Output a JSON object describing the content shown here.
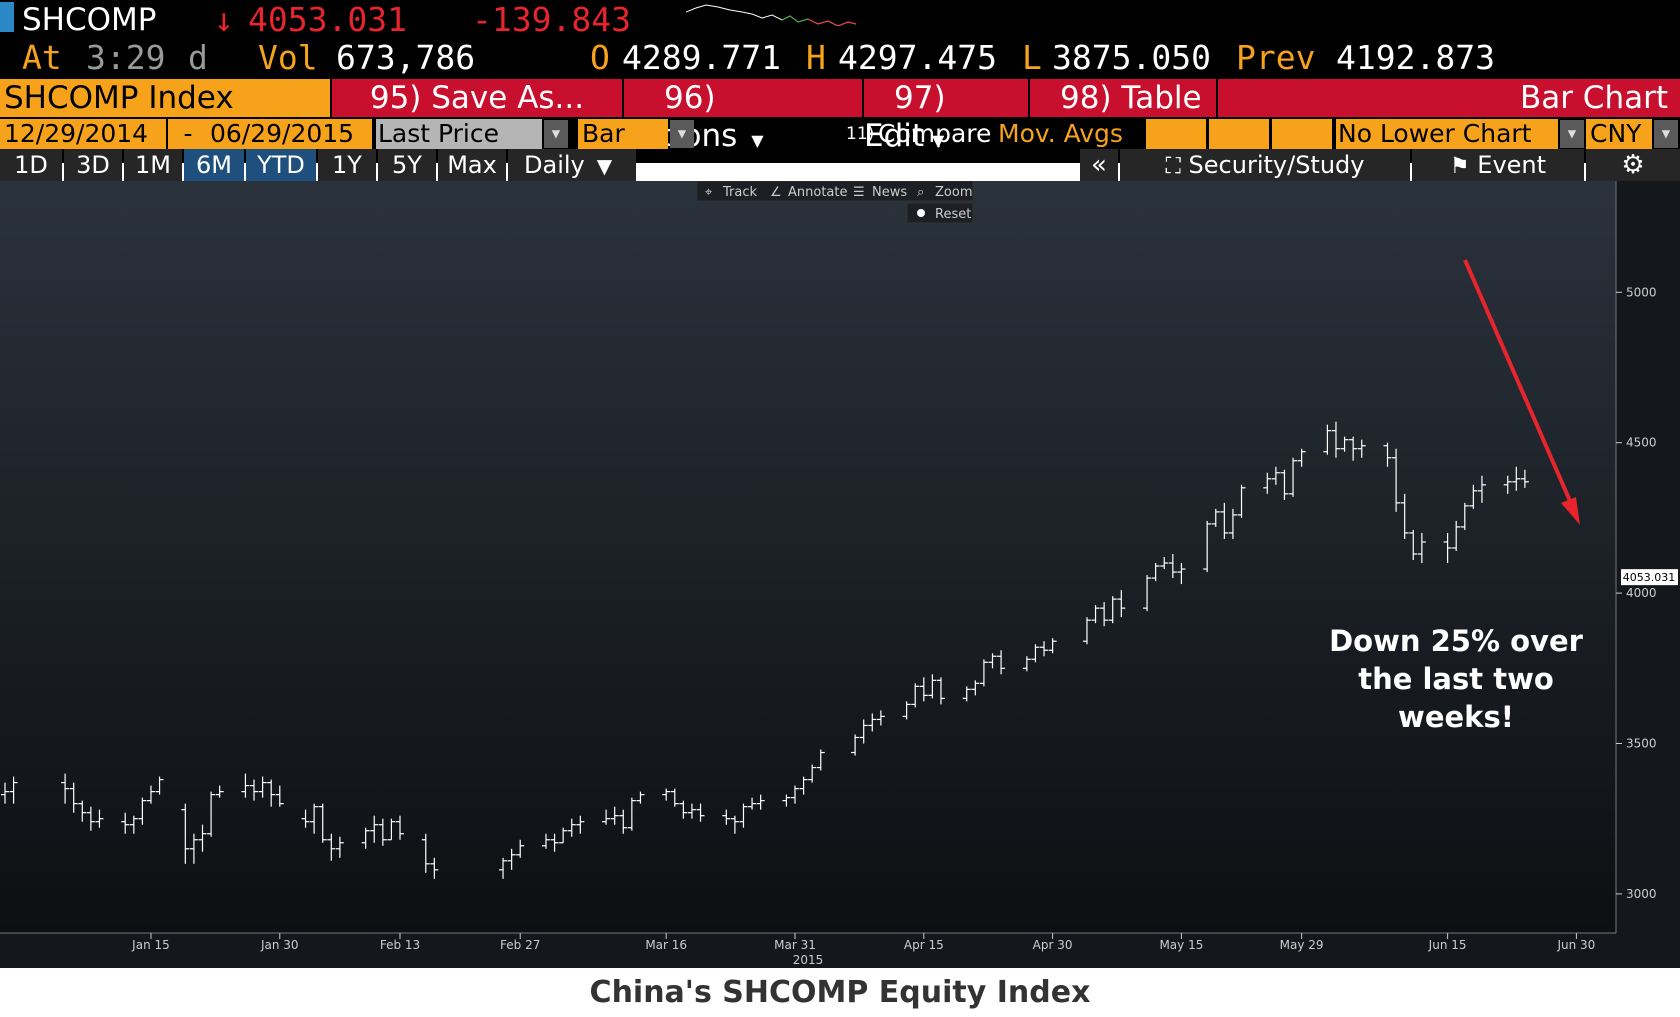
{
  "header": {
    "ticker": "SHCOMP",
    "arrow": "↓",
    "last": "4053.031",
    "change": "-139.843",
    "at_label": "At",
    "time": "3:29",
    "d": "d",
    "vol_label": "Vol",
    "vol": "673,786",
    "o_label": "O",
    "open": "4289.771",
    "h_label": "H",
    "high": "4297.475",
    "l_label": "L",
    "low": "3875.050",
    "prev_label": "Prev",
    "prev": "4192.873"
  },
  "toolbar": {
    "index_name": "SHCOMP Index",
    "save_as": "95) Save As...",
    "actions": "96) Actions",
    "edit": "97) Edit",
    "table": "98) Table",
    "chart_type_title": "Bar Chart"
  },
  "settings": {
    "start_date": "12/29/2014",
    "dash": "-",
    "end_date": "06/29/2015",
    "field": "Last Price",
    "style": "Bar",
    "compare_prefix": "11)",
    "compare": "Compare",
    "mov_avgs": "Mov. Avgs",
    "lower_chart": "No Lower Chart",
    "currency": "CNY"
  },
  "periods": {
    "d1": "1D",
    "d3": "3D",
    "m1": "1M",
    "m6": "6M",
    "ytd": "YTD",
    "y1": "1Y",
    "y5": "5Y",
    "max": "Max",
    "freq": "Daily"
  },
  "panel": {
    "collapse": "«",
    "security_study": "Security/Study",
    "event": "Event"
  },
  "chart_tools": {
    "track": "Track",
    "annotate": "Annotate",
    "news": "News",
    "zoom": "Zoom",
    "reset": "Reset"
  },
  "chart_data": {
    "type": "bar",
    "title": "",
    "xlabel": "",
    "ylabel": "",
    "ylim": [
      2870,
      5370
    ],
    "y_ticks": [
      "3000",
      "3500",
      "4000",
      "4500",
      "5000"
    ],
    "x_tick_labels": [
      "Jan 15",
      "Jan 30",
      "Feb 13",
      "Feb 27",
      "Mar 16",
      "Mar 31",
      "Apr 15",
      "Apr 30",
      "May 15",
      "May 29",
      "Jun 15",
      "Jun 30"
    ],
    "year_label": "2015",
    "last_price_label": "4053.031",
    "last_price": 4053.031,
    "grid": false,
    "annotation": [
      "Down 25% over",
      "the last two",
      "weeks!"
    ],
    "bars": [
      [
        "2014-12-29",
        3330,
        3370,
        3300,
        3340
      ],
      [
        "2014-12-30",
        3340,
        3390,
        3300,
        3370
      ],
      [
        "2015-01-05",
        3370,
        3400,
        3300,
        3350
      ],
      [
        "2015-01-06",
        3350,
        3370,
        3270,
        3300
      ],
      [
        "2015-01-07",
        3300,
        3310,
        3240,
        3270
      ],
      [
        "2015-01-08",
        3270,
        3290,
        3210,
        3240
      ],
      [
        "2015-01-09",
        3240,
        3280,
        3220,
        3250
      ],
      [
        "2015-01-12",
        3240,
        3270,
        3200,
        3230
      ],
      [
        "2015-01-13",
        3230,
        3260,
        3200,
        3250
      ],
      [
        "2015-01-14",
        3250,
        3320,
        3230,
        3310
      ],
      [
        "2015-01-15",
        3310,
        3360,
        3300,
        3340
      ],
      [
        "2015-01-16",
        3340,
        3390,
        3330,
        3380
      ],
      [
        "2015-01-19",
        3280,
        3300,
        3100,
        3150
      ],
      [
        "2015-01-20",
        3150,
        3200,
        3100,
        3180
      ],
      [
        "2015-01-21",
        3180,
        3230,
        3140,
        3200
      ],
      [
        "2015-01-22",
        3200,
        3340,
        3190,
        3330
      ],
      [
        "2015-01-23",
        3330,
        3360,
        3320,
        3340
      ],
      [
        "2015-01-26",
        3340,
        3400,
        3320,
        3360
      ],
      [
        "2015-01-27",
        3360,
        3380,
        3310,
        3340
      ],
      [
        "2015-01-28",
        3340,
        3390,
        3320,
        3370
      ],
      [
        "2015-01-29",
        3370,
        3380,
        3290,
        3330
      ],
      [
        "2015-01-30",
        3330,
        3360,
        3290,
        3300
      ],
      [
        "2015-02-02",
        3250,
        3280,
        3220,
        3240
      ],
      [
        "2015-02-03",
        3240,
        3300,
        3200,
        3290
      ],
      [
        "2015-02-04",
        3290,
        3300,
        3170,
        3180
      ],
      [
        "2015-02-05",
        3180,
        3200,
        3110,
        3150
      ],
      [
        "2015-02-06",
        3150,
        3190,
        3120,
        3170
      ],
      [
        "2015-02-09",
        3170,
        3220,
        3150,
        3210
      ],
      [
        "2015-02-10",
        3210,
        3260,
        3170,
        3230
      ],
      [
        "2015-02-11",
        3230,
        3250,
        3160,
        3180
      ],
      [
        "2015-02-12",
        3180,
        3250,
        3180,
        3240
      ],
      [
        "2015-02-13",
        3240,
        3260,
        3180,
        3200
      ],
      [
        "2015-02-16",
        3180,
        3200,
        3070,
        3100
      ],
      [
        "2015-02-17",
        3100,
        3120,
        3050,
        3080
      ],
      [
        "2015-02-25",
        3080,
        3120,
        3050,
        3110
      ],
      [
        "2015-02-26",
        3110,
        3150,
        3080,
        3130
      ],
      [
        "2015-02-27",
        3130,
        3180,
        3120,
        3160
      ],
      [
        "2015-03-02",
        3160,
        3200,
        3150,
        3180
      ],
      [
        "2015-03-03",
        3180,
        3200,
        3140,
        3170
      ],
      [
        "2015-03-04",
        3170,
        3220,
        3170,
        3210
      ],
      [
        "2015-03-05",
        3210,
        3250,
        3190,
        3230
      ],
      [
        "2015-03-06",
        3230,
        3260,
        3200,
        3240
      ],
      [
        "2015-03-09",
        3240,
        3280,
        3230,
        3250
      ],
      [
        "2015-03-10",
        3250,
        3290,
        3230,
        3260
      ],
      [
        "2015-03-11",
        3260,
        3280,
        3200,
        3220
      ],
      [
        "2015-03-12",
        3220,
        3320,
        3210,
        3310
      ],
      [
        "2015-03-13",
        3310,
        3340,
        3300,
        3330
      ],
      [
        "2015-03-16",
        3330,
        3350,
        3310,
        3340
      ],
      [
        "2015-03-17",
        3340,
        3350,
        3290,
        3300
      ],
      [
        "2015-03-18",
        3300,
        3310,
        3250,
        3270
      ],
      [
        "2015-03-19",
        3270,
        3300,
        3250,
        3280
      ],
      [
        "2015-03-20",
        3280,
        3300,
        3240,
        3260
      ],
      [
        "2015-03-23",
        3260,
        3280,
        3230,
        3250
      ],
      [
        "2015-03-24",
        3250,
        3260,
        3200,
        3240
      ],
      [
        "2015-03-25",
        3240,
        3300,
        3220,
        3290
      ],
      [
        "2015-03-26",
        3290,
        3320,
        3280,
        3300
      ],
      [
        "2015-03-27",
        3300,
        3330,
        3280,
        3310
      ],
      [
        "2015-03-30",
        3310,
        3330,
        3290,
        3320
      ],
      [
        "2015-03-31",
        3320,
        3360,
        3300,
        3350
      ],
      [
        "2015-04-01",
        3350,
        3390,
        3330,
        3380
      ],
      [
        "2015-04-02",
        3380,
        3430,
        3370,
        3420
      ],
      [
        "2015-04-03",
        3420,
        3480,
        3410,
        3470
      ],
      [
        "2015-04-07",
        3470,
        3530,
        3460,
        3520
      ],
      [
        "2015-04-08",
        3520,
        3580,
        3500,
        3560
      ],
      [
        "2015-04-09",
        3560,
        3600,
        3540,
        3580
      ],
      [
        "2015-04-10",
        3580,
        3610,
        3560,
        3590
      ],
      [
        "2015-04-13",
        3590,
        3640,
        3580,
        3630
      ],
      [
        "2015-04-14",
        3630,
        3700,
        3620,
        3690
      ],
      [
        "2015-04-15",
        3690,
        3720,
        3640,
        3660
      ],
      [
        "2015-04-16",
        3660,
        3730,
        3650,
        3710
      ],
      [
        "2015-04-17",
        3710,
        3720,
        3630,
        3650
      ],
      [
        "2015-04-20",
        3650,
        3690,
        3640,
        3680
      ],
      [
        "2015-04-21",
        3680,
        3710,
        3660,
        3700
      ],
      [
        "2015-04-22",
        3700,
        3780,
        3690,
        3770
      ],
      [
        "2015-04-23",
        3770,
        3800,
        3750,
        3790
      ],
      [
        "2015-04-24",
        3790,
        3810,
        3730,
        3750
      ],
      [
        "2015-04-27",
        3750,
        3790,
        3740,
        3780
      ],
      [
        "2015-04-28",
        3780,
        3830,
        3770,
        3820
      ],
      [
        "2015-04-29",
        3820,
        3840,
        3790,
        3810
      ],
      [
        "2015-04-30",
        3810,
        3850,
        3800,
        3840
      ],
      [
        "2015-05-04",
        3840,
        3920,
        3830,
        3910
      ],
      [
        "2015-05-05",
        3910,
        3960,
        3900,
        3950
      ],
      [
        "2015-05-06",
        3950,
        3970,
        3890,
        3910
      ],
      [
        "2015-05-07",
        3910,
        3990,
        3900,
        3980
      ],
      [
        "2015-05-08",
        3980,
        4010,
        3920,
        3950
      ],
      [
        "2015-05-11",
        3950,
        4060,
        3940,
        4050
      ],
      [
        "2015-05-12",
        4050,
        4100,
        4040,
        4090
      ],
      [
        "2015-05-13",
        4090,
        4120,
        4080,
        4100
      ],
      [
        "2015-05-14",
        4100,
        4130,
        4050,
        4070
      ],
      [
        "2015-05-15",
        4070,
        4100,
        4030,
        4080
      ],
      [
        "2015-05-18",
        4080,
        4240,
        4070,
        4230
      ],
      [
        "2015-05-19",
        4230,
        4280,
        4220,
        4270
      ],
      [
        "2015-05-20",
        4270,
        4300,
        4180,
        4200
      ],
      [
        "2015-05-21",
        4200,
        4280,
        4180,
        4260
      ],
      [
        "2015-05-22",
        4260,
        4360,
        4250,
        4350
      ],
      [
        "2015-05-25",
        4350,
        4400,
        4330,
        4380
      ],
      [
        "2015-05-26",
        4380,
        4420,
        4360,
        4400
      ],
      [
        "2015-05-27",
        4400,
        4410,
        4310,
        4330
      ],
      [
        "2015-05-28",
        4330,
        4450,
        4320,
        4440
      ],
      [
        "2015-05-29",
        4440,
        4480,
        4420,
        4470
      ],
      [
        "2015-06-01",
        4470,
        4560,
        4460,
        4540
      ],
      [
        "2015-06-02",
        4540,
        4570,
        4450,
        4480
      ],
      [
        "2015-06-03",
        4480,
        4520,
        4470,
        4510
      ],
      [
        "2015-06-04",
        4510,
        4520,
        4440,
        4480
      ],
      [
        "2015-06-05",
        4480,
        4510,
        4450,
        4490
      ],
      [
        "2015-06-08",
        4490,
        4500,
        4420,
        4450
      ],
      [
        "2015-06-09",
        4450,
        4480,
        4270,
        4300
      ],
      [
        "2015-06-10",
        4300,
        4330,
        4180,
        4200
      ],
      [
        "2015-06-11",
        4200,
        4210,
        4110,
        4130
      ],
      [
        "2015-06-12",
        4130,
        4200,
        4100,
        4170
      ],
      [
        "2015-06-15",
        4170,
        4200,
        4100,
        4150
      ],
      [
        "2015-06-16",
        4150,
        4240,
        4140,
        4220
      ],
      [
        "2015-06-17",
        4220,
        4300,
        4210,
        4290
      ],
      [
        "2015-06-18",
        4290,
        4360,
        4280,
        4340
      ],
      [
        "2015-06-19",
        4340,
        4390,
        4300,
        4360
      ],
      [
        "2015-06-22",
        4360,
        4390,
        4330,
        4370
      ],
      [
        "2015-06-23",
        4370,
        4420,
        4340,
        4380
      ],
      [
        "2015-06-24",
        4380,
        4410,
        4350,
        4370
      ]
    ]
  },
  "caption": "China's SHCOMP Equity Index"
}
